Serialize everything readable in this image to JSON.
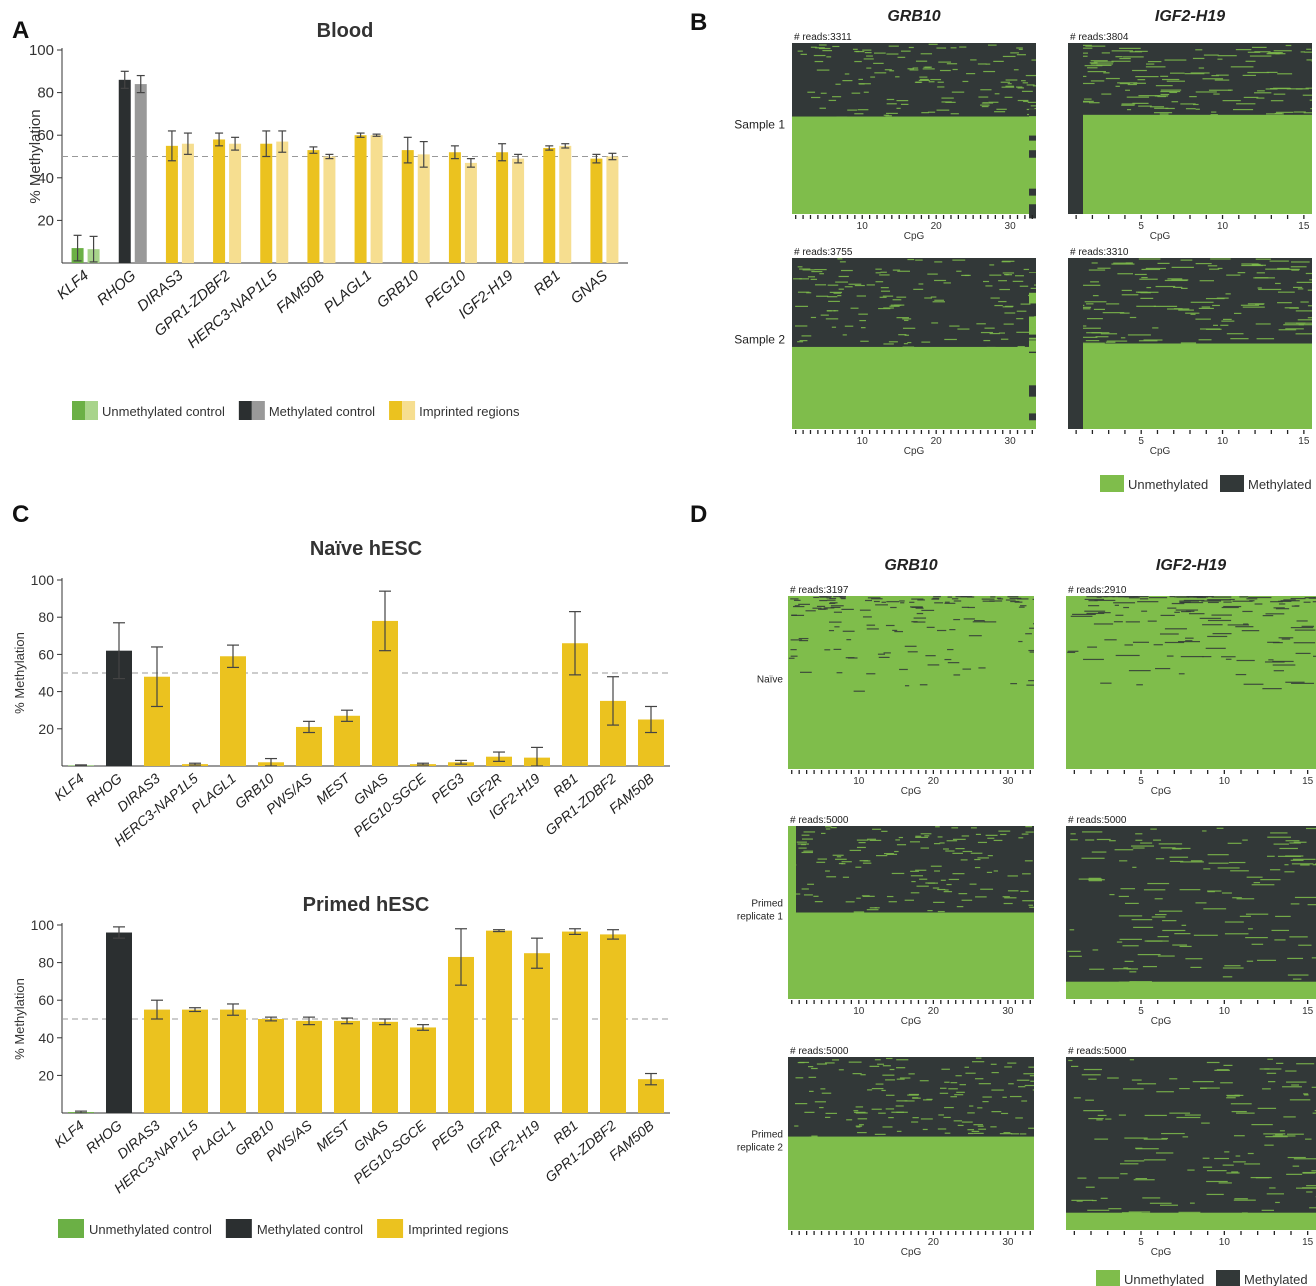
{
  "panels": {
    "A": "A",
    "B": "B",
    "C": "C",
    "D": "D"
  },
  "colors": {
    "unmeth": "#6bb045",
    "unmeth_light": "#a8d48b",
    "meth": "#2b2f30",
    "meth_light": "#999999",
    "imprint": "#ebc21f",
    "imprint_light": "#f6de90",
    "heat_green": "#7fbd4b",
    "heat_dark": "#323838"
  },
  "chart_data": [
    {
      "type": "bar",
      "title": "Blood",
      "ylabel": "% Methylation",
      "ylim": [
        0,
        100
      ],
      "yticks": [
        20,
        40,
        60,
        80,
        100
      ],
      "reference_line": 50,
      "categories": [
        "KLF4",
        "RHOG",
        "DIRAS3",
        "GPR1-ZDBF2",
        "HERC3-NAP1L5",
        "FAM50B",
        "PLAGL1",
        "GRB10",
        "PEG10",
        "IGF2-H19",
        "RB1",
        "GNAS"
      ],
      "groups": [
        "unmeth",
        "meth",
        "imprint",
        "imprint",
        "imprint",
        "imprint",
        "imprint",
        "imprint",
        "imprint",
        "imprint",
        "imprint",
        "imprint"
      ],
      "series": [
        {
          "values": [
            7,
            86,
            55,
            58,
            56,
            53,
            60,
            53,
            52,
            52,
            54,
            49
          ],
          "errors": [
            6,
            4,
            7,
            3,
            6,
            1.5,
            1,
            6,
            3,
            4,
            1,
            2
          ]
        },
        {
          "values": [
            6.5,
            84,
            56,
            56,
            57,
            50,
            60,
            51,
            47,
            49,
            55,
            50
          ],
          "errors": [
            6,
            4,
            5,
            3,
            5,
            1,
            0.5,
            6,
            2,
            2,
            1,
            1.5
          ]
        }
      ],
      "legend": [
        "Unmethylated control",
        "Methylated control",
        "Imprinted regions"
      ]
    },
    {
      "type": "bar",
      "title": "Naïve hESC",
      "ylabel": "% Methylation",
      "ylim": [
        0,
        100
      ],
      "yticks": [
        20,
        40,
        60,
        80,
        100
      ],
      "reference_line": 50,
      "categories": [
        "KLF4",
        "RHOG",
        "DIRAS3",
        "HERC3-NAP1L5",
        "PLAGL1",
        "GRB10",
        "PWS/AS",
        "MEST",
        "GNAS",
        "PEG10-SGCE",
        "PEG3",
        "IGF2R",
        "IGF2-H19",
        "RB1",
        "GPR1-ZDBF2",
        "FAM50B"
      ],
      "groups": [
        "unmeth",
        "meth",
        "imprint",
        "imprint",
        "imprint",
        "imprint",
        "imprint",
        "imprint",
        "imprint",
        "imprint",
        "imprint",
        "imprint",
        "imprint",
        "imprint",
        "imprint",
        "imprint"
      ],
      "values": [
        0.3,
        62,
        48,
        1,
        59,
        2,
        21,
        27,
        78,
        1,
        2,
        5,
        4.5,
        66,
        35,
        25
      ],
      "errors": [
        0.3,
        15,
        16,
        0.5,
        6,
        2,
        3,
        3,
        16,
        0.5,
        1,
        2.5,
        5.5,
        17,
        13,
        7
      ]
    },
    {
      "type": "bar",
      "title": "Primed hESC",
      "ylabel": "% Methylation",
      "ylim": [
        0,
        100
      ],
      "yticks": [
        20,
        40,
        60,
        80,
        100
      ],
      "reference_line": 50,
      "categories": [
        "KLF4",
        "RHOG",
        "DIRAS3",
        "HERC3-NAP1L5",
        "PLAGL1",
        "GRB10",
        "PWS/AS",
        "MEST",
        "GNAS",
        "PEG10-SGCE",
        "PEG3",
        "IGF2R",
        "IGF2-H19",
        "RB1",
        "GPR1-ZDBF2",
        "FAM50B"
      ],
      "groups": [
        "unmeth",
        "meth",
        "imprint",
        "imprint",
        "imprint",
        "imprint",
        "imprint",
        "imprint",
        "imprint",
        "imprint",
        "imprint",
        "imprint",
        "imprint",
        "imprint",
        "imprint",
        "imprint"
      ],
      "values": [
        0.5,
        96,
        55,
        55,
        55,
        50,
        49,
        49,
        48.5,
        45.5,
        83,
        97,
        85,
        96.5,
        95,
        18
      ],
      "errors": [
        0.5,
        3,
        5,
        1,
        3,
        1,
        2,
        1.5,
        1.5,
        1.5,
        15,
        0.5,
        8,
        1.5,
        2.5,
        3
      ],
      "legend": [
        "Unmethylated control",
        "Methylated control",
        "Imprinted regions"
      ]
    },
    {
      "type": "heatmap",
      "columns": [
        "GRB10",
        "IGF2-H19"
      ],
      "rows": [
        "Sample 1",
        "Sample 2"
      ],
      "xlabel": "CpG",
      "cells": [
        {
          "reads": "# reads:3311",
          "cpgs": 33,
          "xticks": [
            10,
            20,
            30
          ],
          "methylated_fraction": 0.43
        },
        {
          "reads": "# reads:3804",
          "cpgs": 15,
          "xticks": [
            5,
            10,
            15
          ],
          "methylated_fraction": 0.42
        },
        {
          "reads": "# reads:3755",
          "cpgs": 33,
          "xticks": [
            10,
            20,
            30
          ],
          "methylated_fraction": 0.52
        },
        {
          "reads": "# reads:3310",
          "cpgs": 15,
          "xticks": [
            5,
            10,
            15
          ],
          "methylated_fraction": 0.5
        }
      ],
      "legend": [
        "Unmethylated",
        "Methylated"
      ]
    },
    {
      "type": "heatmap",
      "columns": [
        "GRB10",
        "IGF2-H19"
      ],
      "rows": [
        "Naïve",
        "Primed replicate 1",
        "Primed replicate 2"
      ],
      "xlabel": "CpG",
      "cells": [
        {
          "reads": "# reads:3197",
          "cpgs": 33,
          "xticks": [
            10,
            20,
            30
          ],
          "methylated_fraction": 0.0
        },
        {
          "reads": "# reads:2910",
          "cpgs": 15,
          "xticks": [
            5,
            10,
            15
          ],
          "methylated_fraction": 0.0
        },
        {
          "reads": "# reads:5000",
          "cpgs": 33,
          "xticks": [
            10,
            20,
            30
          ],
          "methylated_fraction": 0.5
        },
        {
          "reads": "# reads:5000",
          "cpgs": 15,
          "xticks": [
            5,
            10,
            15
          ],
          "methylated_fraction": 0.9
        },
        {
          "reads": "# reads:5000",
          "cpgs": 33,
          "xticks": [
            10,
            20,
            30
          ],
          "methylated_fraction": 0.46
        },
        {
          "reads": "# reads:5000",
          "cpgs": 15,
          "xticks": [
            5,
            10,
            15
          ],
          "methylated_fraction": 0.9
        }
      ],
      "legend": [
        "Unmethylated",
        "Methylated"
      ]
    }
  ]
}
